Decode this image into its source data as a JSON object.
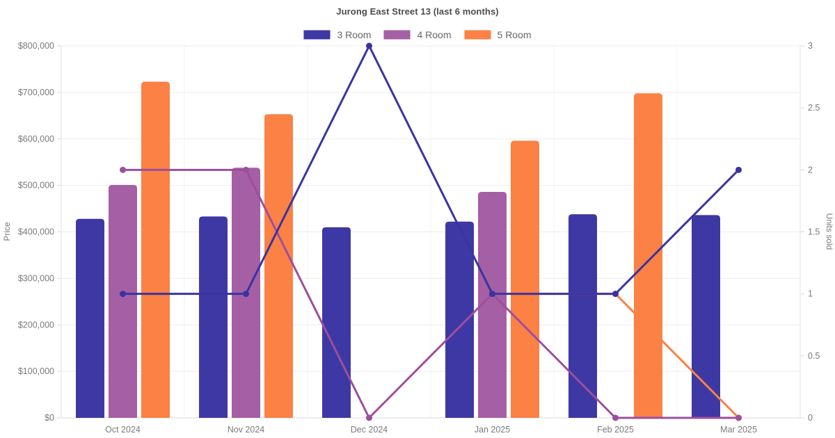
{
  "title": "Jurong East Street 13 (last 6 months)",
  "chart_data": {
    "type": "combo-bar-line",
    "categories": [
      "Oct 2024",
      "Nov 2024",
      "Dec 2024",
      "Jan 2025",
      "Feb 2025",
      "Mar 2025"
    ],
    "bar_series": [
      {
        "name": "3 Room",
        "color": "#3e38a5",
        "axis": "left",
        "values": [
          428000,
          433000,
          410000,
          422000,
          438000,
          436000
        ]
      },
      {
        "name": "4 Room",
        "color": "#a55fa5",
        "axis": "left",
        "values": [
          501000,
          538000,
          null,
          486000,
          null,
          null
        ]
      },
      {
        "name": "5 Room",
        "color": "#fb8145",
        "axis": "left",
        "values": [
          723000,
          653000,
          null,
          596000,
          698000,
          null
        ]
      }
    ],
    "line_series": [
      {
        "name": "5 Room",
        "color": "#fb8145",
        "axis": "right",
        "values": [
          null,
          null,
          null,
          1,
          1,
          0
        ]
      },
      {
        "name": "4 Room",
        "color": "#9c4f9c",
        "axis": "right",
        "values": [
          2,
          2,
          0,
          1,
          0,
          0
        ]
      },
      {
        "name": "3 Room",
        "color": "#3a33a0",
        "axis": "right",
        "values": [
          1,
          1,
          3,
          1,
          1,
          2
        ]
      }
    ],
    "y_left": {
      "title": "Price",
      "min": 0,
      "max": 800000,
      "tick_step": 100000,
      "tick_labels": [
        "$0",
        "$100,000",
        "$200,000",
        "$300,000",
        "$400,000",
        "$500,000",
        "$600,000",
        "$700,000",
        "$800,000"
      ]
    },
    "y_right": {
      "title": "Units sold",
      "min": 0,
      "max": 3,
      "tick_step": 0.5,
      "tick_labels": [
        "0",
        "0.5",
        "1",
        "1.5",
        "2",
        "2.5",
        "3"
      ]
    },
    "legend": [
      {
        "label": "3 Room",
        "color": "#3e38a5"
      },
      {
        "label": "4 Room",
        "color": "#a55fa5"
      },
      {
        "label": "5 Room",
        "color": "#fb8145"
      }
    ],
    "grid": {
      "h_color": "#ededed",
      "v_color": "#f2f2f2",
      "border_color": "#e2e2e2",
      "tick_color": "#d9d9d9"
    }
  }
}
